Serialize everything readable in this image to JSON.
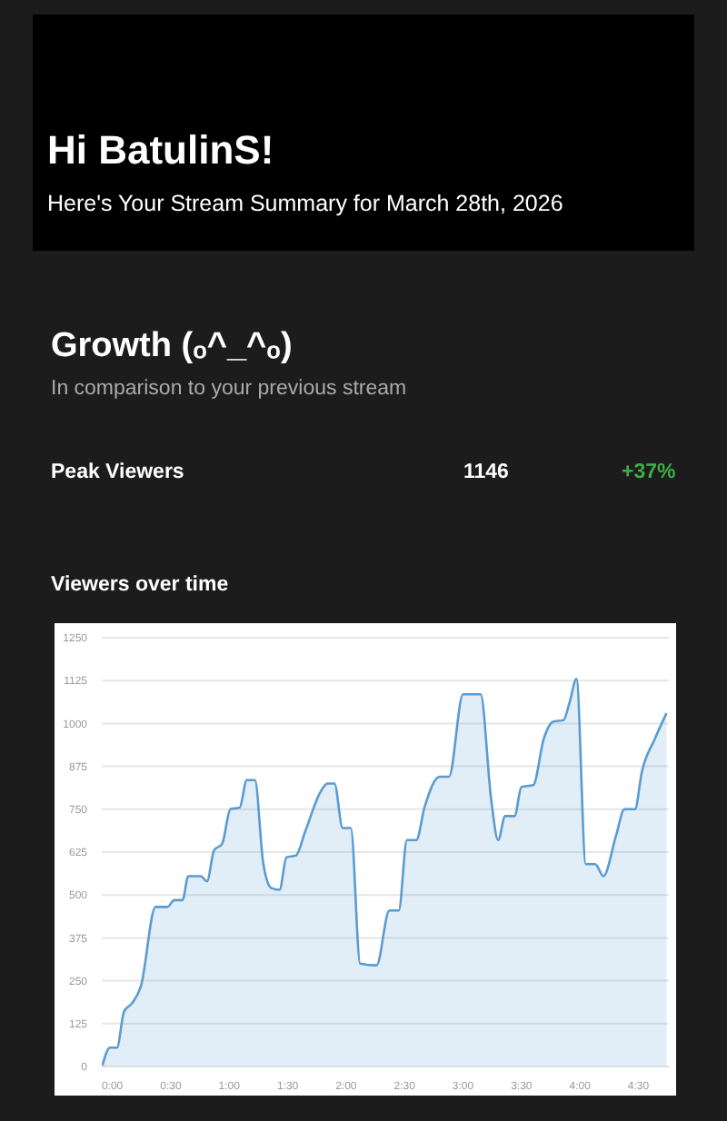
{
  "chart_data": {
    "type": "area",
    "title": "Viewers over time",
    "annotations": [
      "Hi BatulinS!",
      "Here's Your Stream Summary for March 28th, 2026",
      "Growth (ₒ^_^ₒ)",
      "In comparison to your previous stream",
      "Peak Viewers",
      "1146",
      "+37%"
    ],
    "x": [
      -0.087,
      -0.02,
      0.04,
      0.1,
      0.17,
      0.245,
      0.37,
      0.47,
      0.53,
      0.6,
      0.65,
      0.755,
      0.81,
      0.87,
      0.94,
      1.01,
      1.09,
      1.15,
      1.22,
      1.29,
      1.36,
      1.43,
      1.49,
      1.57,
      1.65,
      1.78,
      1.84,
      1.9,
      1.97,
      2.04,
      2.12,
      2.26,
      2.37,
      2.45,
      2.52,
      2.6,
      2.67,
      2.8,
      2.88,
      3.0,
      3.15,
      3.24,
      3.3,
      3.36,
      3.44,
      3.5,
      3.6,
      3.69,
      3.77,
      3.86,
      3.91,
      3.97,
      4.05,
      4.13,
      4.2,
      4.31,
      4.38,
      4.47,
      4.53,
      4.64,
      4.74
    ],
    "series": [
      {
        "color": "#5a9bd0",
        "values": [
          0,
          55,
          55,
          160,
          185,
          235,
          465,
          465,
          485,
          485,
          555,
          555,
          540,
          630,
          650,
          750,
          755,
          835,
          835,
          595,
          520,
          515,
          610,
          615,
          685,
          800,
          825,
          825,
          695,
          695,
          300,
          295,
          455,
          455,
          660,
          660,
          755,
          845,
          845,
          1085,
          1085,
          780,
          660,
          730,
          730,
          815,
          820,
          955,
          1005,
          1010,
          1060,
          1130,
          590,
          590,
          555,
          675,
          750,
          750,
          860,
          955,
          1030
        ]
      }
    ],
    "xlim": [
      -0.09,
      4.76
    ],
    "xticks": [
      {
        "value": 0,
        "label": "0:00"
      },
      {
        "value": 0.5,
        "label": "0:30"
      },
      {
        "value": 1,
        "label": "1:00"
      },
      {
        "value": 1.5,
        "label": "1:30"
      },
      {
        "value": 2,
        "label": "2:00"
      },
      {
        "value": 2.5,
        "label": "2:30"
      },
      {
        "value": 3,
        "label": "3:00"
      },
      {
        "value": 3.5,
        "label": "3:30"
      },
      {
        "value": 4,
        "label": "4:00"
      },
      {
        "value": 4.5,
        "label": "4:30"
      }
    ],
    "ylim": [
      0,
      1250
    ],
    "yticks": [
      0,
      125,
      250,
      375,
      500,
      625,
      750,
      875,
      1000,
      1125,
      1250
    ],
    "grid": "y"
  }
}
